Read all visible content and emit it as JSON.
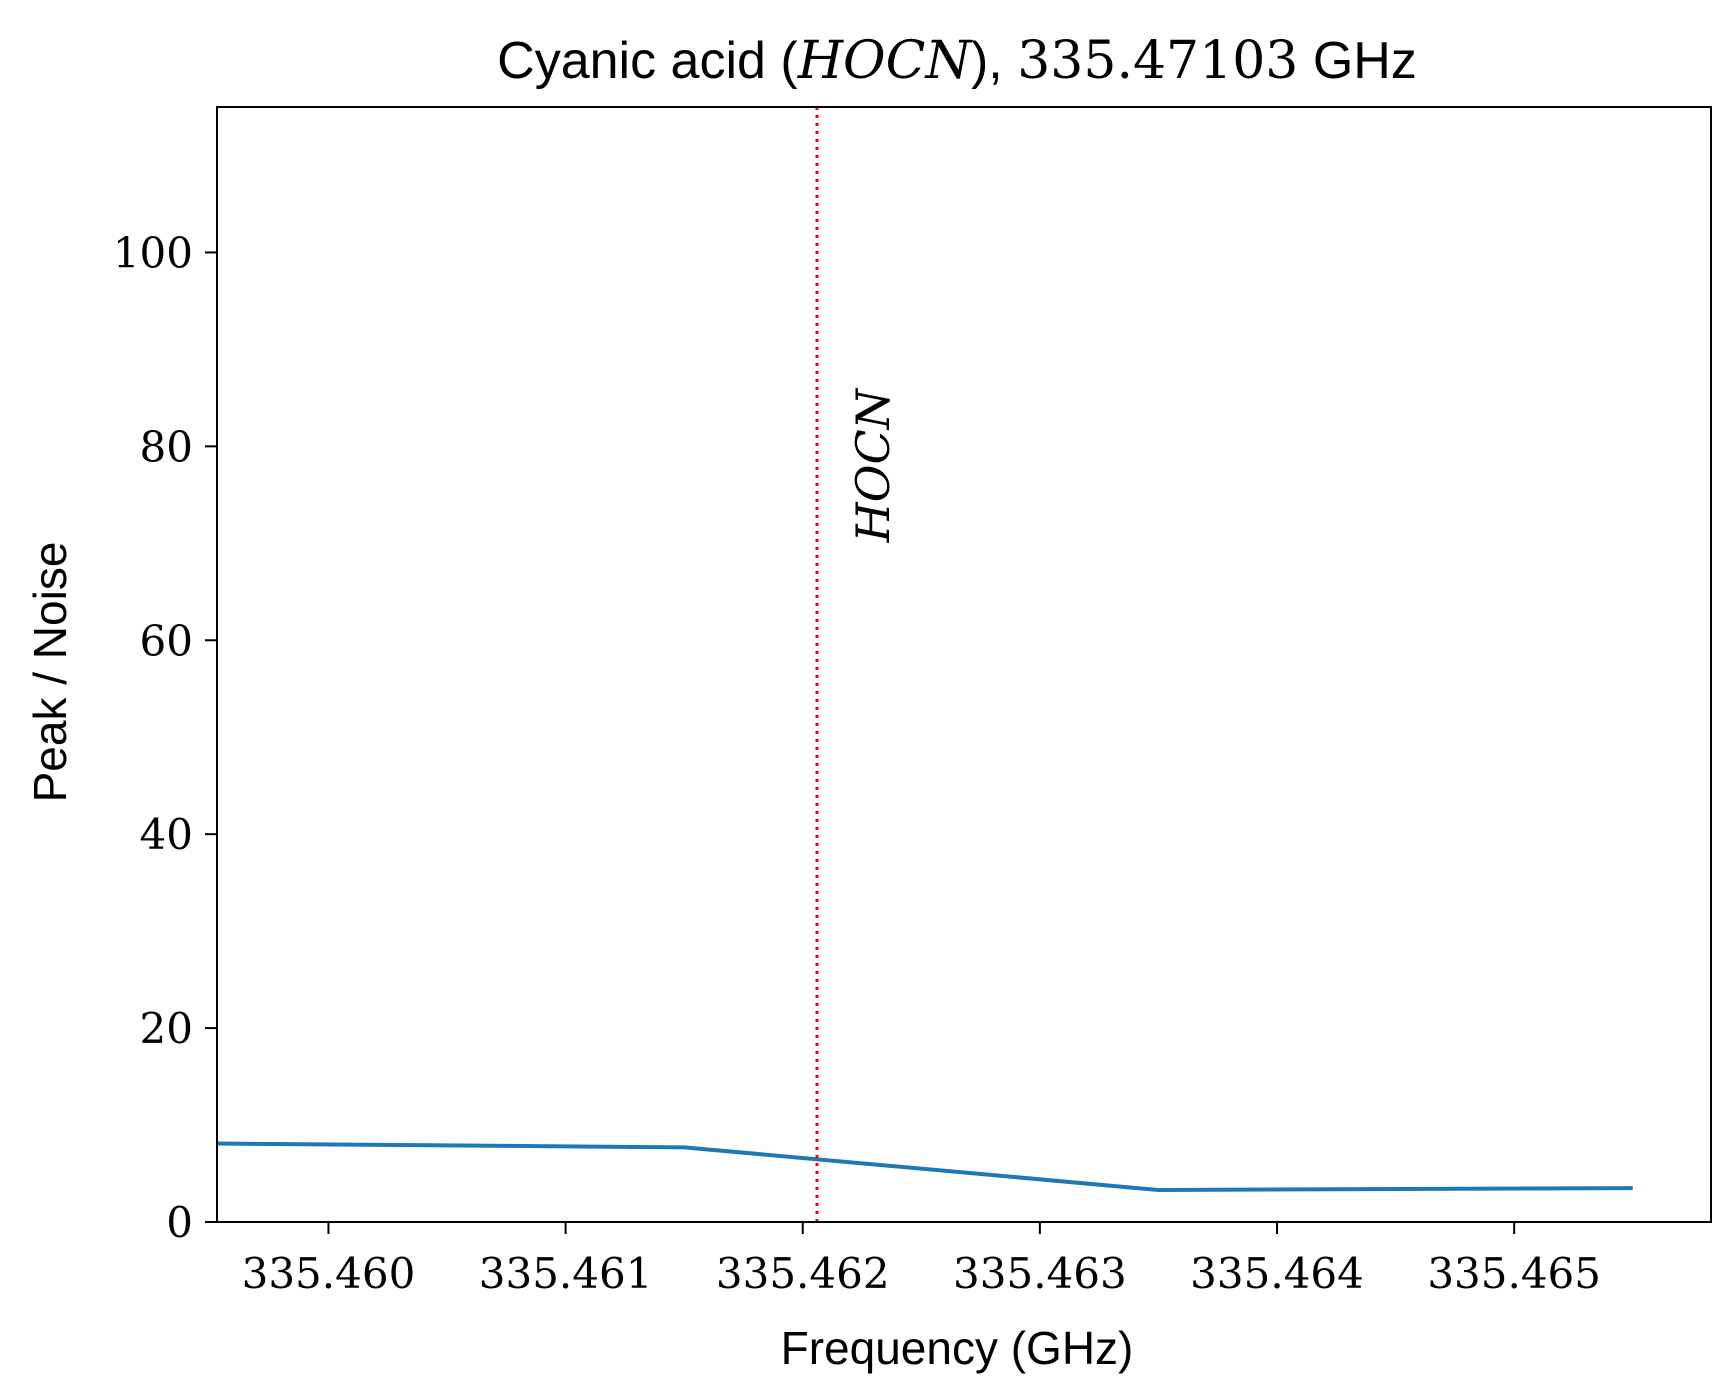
{
  "chart_data": {
    "type": "line",
    "title": {
      "prefix": "Cyanic acid (",
      "molecule": "HOCN",
      "separator": "), ",
      "frequency": "335.47103",
      "unit": " GHz"
    },
    "xlabel": "Frequency (GHz)",
    "ylabel": "Peak / Noise",
    "xlim": [
      335.45953,
      335.46583
    ],
    "ylim": [
      0,
      115
    ],
    "xticks": [
      335.46,
      335.461,
      335.462,
      335.463,
      335.464,
      335.465
    ],
    "xtick_labels": [
      "335.460",
      "335.461",
      "335.462",
      "335.463",
      "335.464",
      "335.465"
    ],
    "yticks": [
      0,
      20,
      40,
      60,
      80,
      100
    ],
    "ytick_labels": [
      "0",
      "20",
      "40",
      "60",
      "80",
      "100"
    ],
    "grid": false,
    "series": [
      {
        "color": "#1f77b4",
        "x": [
          335.4595,
          335.4615,
          335.4635,
          335.4655
        ],
        "y": [
          8.1,
          7.7,
          3.3,
          3.5
        ]
      }
    ],
    "marker_line": {
      "x": 335.46206,
      "label": "HOCN",
      "color": "#ff0000",
      "style": "dotted",
      "label_y": 78
    }
  }
}
